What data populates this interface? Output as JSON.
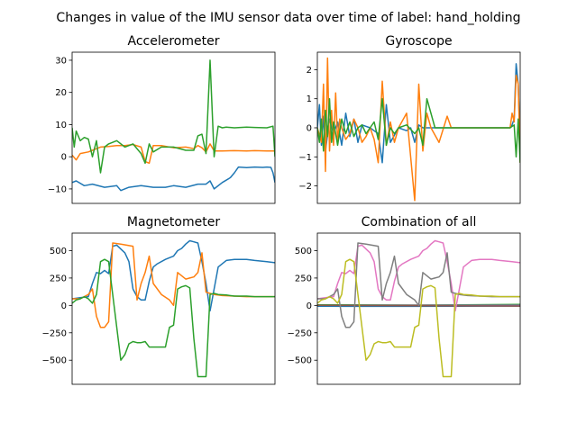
{
  "figure": {
    "title": "Changes in value of the IMU sensor data over time of label: hand_holding"
  },
  "colors": {
    "c0": "#1f77b4",
    "c1": "#ff7f0e",
    "c2": "#2ca02c",
    "c3": "#d62728",
    "c4": "#9467bd",
    "c5": "#8c564b",
    "c6": "#e377c2",
    "c7": "#7f7f7f",
    "c8": "#bcbd22"
  },
  "chart_data": [
    {
      "type": "line",
      "title": "Accelerometer",
      "xlim": [
        0,
        100
      ],
      "ylim": [
        -14.5,
        32.5
      ],
      "yticks": [
        -10,
        0,
        10,
        20,
        30
      ],
      "xticks": [],
      "series": [
        {
          "color": "#1f77b4",
          "x": [
            0,
            2,
            6,
            10,
            16,
            22,
            24,
            28,
            34,
            40,
            46,
            50,
            56,
            62,
            66,
            68,
            70,
            74,
            78,
            80,
            82,
            86,
            90,
            94,
            96,
            98,
            99,
            100
          ],
          "y": [
            -8,
            -7.5,
            -9,
            -8.5,
            -9.5,
            -9,
            -10.5,
            -9.5,
            -9,
            -9.5,
            -9.5,
            -9,
            -9.5,
            -8.5,
            -8.5,
            -7.5,
            -10,
            -8,
            -6.5,
            -5,
            -3.2,
            -3.4,
            -3.2,
            -3.3,
            -3.2,
            -3.3,
            -5,
            -8
          ]
        },
        {
          "color": "#ff7f0e",
          "x": [
            0,
            2,
            4,
            8,
            10,
            12,
            14,
            18,
            22,
            26,
            30,
            34,
            36,
            38,
            40,
            44,
            50,
            56,
            60,
            62,
            64,
            66,
            68,
            70,
            74,
            80,
            86,
            90,
            96,
            100
          ],
          "y": [
            0.5,
            -1,
            1,
            1.5,
            2,
            2.5,
            3,
            3.2,
            3.5,
            3.5,
            3.8,
            3,
            -1.5,
            -2,
            3.5,
            3.5,
            2.8,
            3,
            2.5,
            3.5,
            2.8,
            1.5,
            4,
            1.8,
            1.8,
            1.9,
            1.8,
            1.9,
            1.8,
            1.8
          ]
        },
        {
          "color": "#2ca02c",
          "x": [
            0,
            1,
            2,
            4,
            6,
            8,
            10,
            12,
            14,
            16,
            18,
            22,
            26,
            30,
            34,
            36,
            38,
            40,
            44,
            50,
            56,
            60,
            62,
            64,
            66,
            68,
            70,
            72,
            74,
            76,
            80,
            86,
            90,
            96,
            99,
            100
          ],
          "y": [
            9,
            3,
            8,
            5,
            6,
            5.5,
            0,
            5,
            -5,
            3,
            4,
            5,
            3,
            4,
            1,
            -2,
            4,
            1.5,
            3,
            3,
            2,
            2,
            6.5,
            7,
            1,
            30,
            0,
            9.5,
            9,
            9.2,
            9,
            9.2,
            9.1,
            9,
            9.5,
            0
          ]
        }
      ]
    },
    {
      "type": "line",
      "title": "Gyroscope",
      "xlim": [
        0,
        100
      ],
      "ylim": [
        -2.6,
        2.6
      ],
      "yticks": [
        -2,
        -1,
        0,
        1,
        2
      ],
      "xticks": [],
      "series": [
        {
          "color": "#1f77b4",
          "x": [
            0,
            1,
            2,
            3,
            4,
            6,
            8,
            10,
            12,
            14,
            16,
            18,
            20,
            22,
            26,
            30,
            32,
            34,
            36,
            40,
            44,
            46,
            48,
            50,
            52,
            56,
            62,
            70,
            80,
            90,
            95,
            96,
            97,
            98,
            99,
            100
          ],
          "y": [
            0,
            0.8,
            -0.6,
            0.4,
            -0.8,
            0.3,
            -0.2,
            0.2,
            -0.6,
            0.5,
            -0.3,
            0.3,
            -0.5,
            0.1,
            0,
            -0.2,
            -1.2,
            0.8,
            -0.5,
            0,
            -0.1,
            0,
            -0.5,
            0.1,
            0,
            0,
            0,
            0,
            0,
            0,
            0,
            0.1,
            0.3,
            2.2,
            1.5,
            -0.7
          ]
        },
        {
          "color": "#ff7f0e",
          "x": [
            0,
            2,
            3,
            4,
            5,
            6,
            7,
            8,
            9,
            10,
            11,
            12,
            14,
            16,
            18,
            20,
            22,
            24,
            26,
            28,
            30,
            32,
            34,
            36,
            38,
            40,
            44,
            48,
            50,
            52,
            54,
            56,
            60,
            64,
            66,
            70,
            80,
            90,
            95,
            96,
            97,
            98,
            99,
            100
          ],
          "y": [
            0,
            -0.5,
            1.5,
            -1.5,
            2.4,
            -0.8,
            0.6,
            -0.6,
            1.2,
            -0.5,
            0.3,
            0,
            -0.4,
            -0.2,
            0.3,
            0,
            -0.5,
            -0.3,
            0,
            -0.4,
            -1.2,
            1.6,
            -0.6,
            0.2,
            -0.5,
            0,
            0.5,
            -2.5,
            1.5,
            -0.8,
            0.5,
            0,
            -0.5,
            0.4,
            0,
            0,
            0,
            0,
            0,
            0.5,
            0.2,
            1.8,
            1.5,
            -1.2
          ]
        },
        {
          "color": "#2ca02c",
          "x": [
            0,
            1,
            2,
            3,
            4,
            5,
            6,
            7,
            8,
            10,
            12,
            14,
            16,
            18,
            20,
            22,
            24,
            26,
            28,
            30,
            32,
            34,
            36,
            38,
            40,
            44,
            48,
            50,
            52,
            54,
            58,
            62,
            70,
            80,
            90,
            95,
            97,
            98,
            99,
            100
          ],
          "y": [
            0,
            -0.5,
            0.3,
            -0.8,
            0.6,
            -0.3,
            1,
            -0.5,
            0.2,
            -0.6,
            0.3,
            -0.2,
            0.2,
            -0.3,
            0,
            0.1,
            -0.2,
            0,
            0.2,
            -0.4,
            1,
            -0.6,
            0,
            -0.2,
            0,
            0.1,
            -0.2,
            0,
            -0.6,
            1,
            0,
            0,
            0,
            0,
            0,
            0,
            0.1,
            -1,
            0.3,
            -1.2
          ]
        }
      ]
    },
    {
      "type": "line",
      "title": "Magnetometer",
      "xlim": [
        0,
        100
      ],
      "ylim": [
        -720,
        660
      ],
      "yticks": [
        -500,
        -250,
        0,
        250,
        500
      ],
      "xticks": [],
      "series": [
        {
          "color": "#1f77b4",
          "x": [
            0,
            4,
            8,
            10,
            12,
            14,
            16,
            18,
            20,
            22,
            26,
            28,
            30,
            32,
            34,
            36,
            38,
            40,
            42,
            46,
            50,
            52,
            54,
            56,
            58,
            60,
            62,
            64,
            66,
            68,
            70,
            72,
            76,
            80,
            86,
            90,
            96,
            100
          ],
          "y": [
            60,
            70,
            80,
            200,
            300,
            290,
            320,
            290,
            540,
            550,
            480,
            400,
            150,
            80,
            50,
            50,
            220,
            350,
            380,
            420,
            450,
            500,
            520,
            560,
            590,
            580,
            570,
            400,
            200,
            -50,
            150,
            350,
            410,
            420,
            420,
            410,
            400,
            390
          ]
        },
        {
          "color": "#ff7f0e",
          "x": [
            0,
            4,
            8,
            10,
            12,
            14,
            16,
            18,
            20,
            24,
            30,
            32,
            34,
            36,
            38,
            40,
            44,
            48,
            50,
            52,
            56,
            58,
            60,
            62,
            64,
            66,
            68,
            70,
            74,
            80,
            86,
            90,
            96,
            100
          ],
          "y": [
            60,
            60,
            100,
            150,
            -100,
            -200,
            -200,
            -150,
            570,
            560,
            540,
            50,
            200,
            300,
            450,
            200,
            100,
            50,
            0,
            300,
            240,
            250,
            260,
            300,
            480,
            120,
            110,
            100,
            90,
            85,
            80,
            80,
            80,
            80
          ]
        },
        {
          "color": "#2ca02c",
          "x": [
            0,
            2,
            4,
            6,
            8,
            10,
            12,
            14,
            16,
            18,
            20,
            22,
            24,
            26,
            28,
            30,
            32,
            34,
            36,
            38,
            42,
            46,
            48,
            50,
            52,
            54,
            56,
            58,
            60,
            62,
            64,
            66,
            68,
            70,
            72,
            76,
            80,
            86,
            90,
            96,
            100
          ],
          "y": [
            20,
            50,
            60,
            80,
            60,
            20,
            100,
            400,
            420,
            400,
            100,
            -200,
            -500,
            -450,
            -350,
            -330,
            -340,
            -340,
            -330,
            -380,
            -380,
            -380,
            -200,
            -180,
            150,
            170,
            180,
            160,
            -300,
            -650,
            -650,
            -650,
            100,
            110,
            100,
            95,
            85,
            85,
            80,
            80,
            80
          ]
        }
      ]
    },
    {
      "type": "line",
      "title": "Combination of all",
      "xlim": [
        0,
        100
      ],
      "ylim": [
        -720,
        660
      ],
      "yticks": [
        -500,
        -250,
        0,
        250,
        500
      ],
      "xticks": [],
      "series": [
        {
          "color": "#1f77b4",
          "x": [
            0,
            50,
            100
          ],
          "y": [
            -8,
            -9,
            -5
          ]
        },
        {
          "color": "#ff7f0e",
          "x": [
            0,
            50,
            100
          ],
          "y": [
            1,
            3,
            2
          ]
        },
        {
          "color": "#2ca02c",
          "x": [
            0,
            50,
            100
          ],
          "y": [
            5,
            3,
            9
          ]
        },
        {
          "color": "#d62728",
          "x": [
            0,
            50,
            100
          ],
          "y": [
            0,
            0,
            0
          ]
        },
        {
          "color": "#9467bd",
          "x": [
            0,
            50,
            100
          ],
          "y": [
            0,
            0,
            0
          ]
        },
        {
          "color": "#8c564b",
          "x": [
            0,
            50,
            100
          ],
          "y": [
            0,
            -3,
            -6
          ]
        },
        {
          "color": "#e377c2",
          "x": [
            0,
            4,
            8,
            10,
            12,
            14,
            16,
            18,
            20,
            22,
            26,
            28,
            30,
            32,
            34,
            36,
            38,
            40,
            42,
            46,
            50,
            52,
            54,
            56,
            58,
            60,
            62,
            64,
            66,
            68,
            70,
            72,
            76,
            80,
            86,
            90,
            96,
            100
          ],
          "y": [
            60,
            70,
            80,
            200,
            300,
            290,
            320,
            290,
            540,
            550,
            480,
            400,
            150,
            80,
            50,
            50,
            220,
            350,
            380,
            420,
            450,
            500,
            520,
            560,
            590,
            580,
            570,
            400,
            200,
            -50,
            150,
            350,
            410,
            420,
            420,
            410,
            400,
            390
          ]
        },
        {
          "color": "#7f7f7f",
          "x": [
            0,
            4,
            8,
            10,
            12,
            14,
            16,
            18,
            20,
            24,
            30,
            32,
            34,
            36,
            38,
            40,
            44,
            48,
            50,
            52,
            56,
            58,
            60,
            62,
            64,
            66,
            68,
            70,
            74,
            80,
            86,
            90,
            96,
            100
          ],
          "y": [
            60,
            60,
            100,
            150,
            -100,
            -200,
            -200,
            -150,
            570,
            560,
            540,
            50,
            200,
            300,
            450,
            200,
            100,
            50,
            0,
            300,
            240,
            250,
            260,
            300,
            480,
            120,
            110,
            100,
            90,
            85,
            80,
            80,
            80,
            80
          ]
        },
        {
          "color": "#bcbd22",
          "x": [
            0,
            2,
            4,
            6,
            8,
            10,
            12,
            14,
            16,
            18,
            20,
            22,
            24,
            26,
            28,
            30,
            32,
            34,
            36,
            38,
            42,
            46,
            48,
            50,
            52,
            54,
            56,
            58,
            60,
            62,
            64,
            66,
            68,
            70,
            72,
            76,
            80,
            86,
            90,
            96,
            100
          ],
          "y": [
            20,
            50,
            60,
            80,
            60,
            20,
            100,
            400,
            420,
            400,
            100,
            -200,
            -500,
            -450,
            -350,
            -330,
            -340,
            -340,
            -330,
            -380,
            -380,
            -380,
            -200,
            -180,
            150,
            170,
            180,
            160,
            -300,
            -650,
            -650,
            -650,
            100,
            110,
            100,
            95,
            85,
            85,
            80,
            80,
            80
          ]
        }
      ]
    }
  ]
}
